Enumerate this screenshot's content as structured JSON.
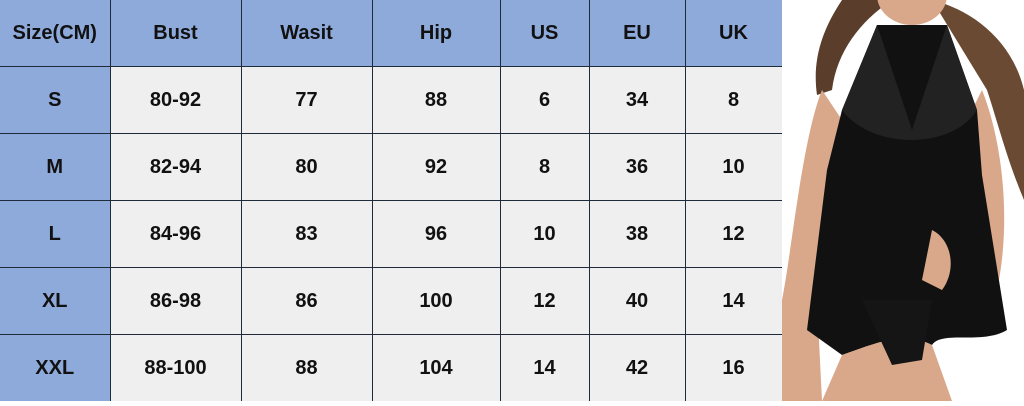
{
  "size_chart": {
    "headers": [
      "Size(CM)",
      "Bust",
      "Wasit",
      "Hip",
      "US",
      "EU",
      "UK"
    ],
    "rows": [
      [
        "S",
        "80-92",
        "77",
        "88",
        "6",
        "34",
        "8"
      ],
      [
        "M",
        "82-94",
        "80",
        "92",
        "8",
        "36",
        "10"
      ],
      [
        "L",
        "84-96",
        "83",
        "96",
        "10",
        "38",
        "12"
      ],
      [
        "XL",
        "86-98",
        "86",
        "100",
        "12",
        "40",
        "14"
      ],
      [
        "XXL",
        "88-100",
        "88",
        "104",
        "14",
        "42",
        "16"
      ]
    ]
  },
  "colors": {
    "header_bg": "#8eaadb",
    "cell_bg": "#efefef",
    "border": "#1f2a3a"
  }
}
